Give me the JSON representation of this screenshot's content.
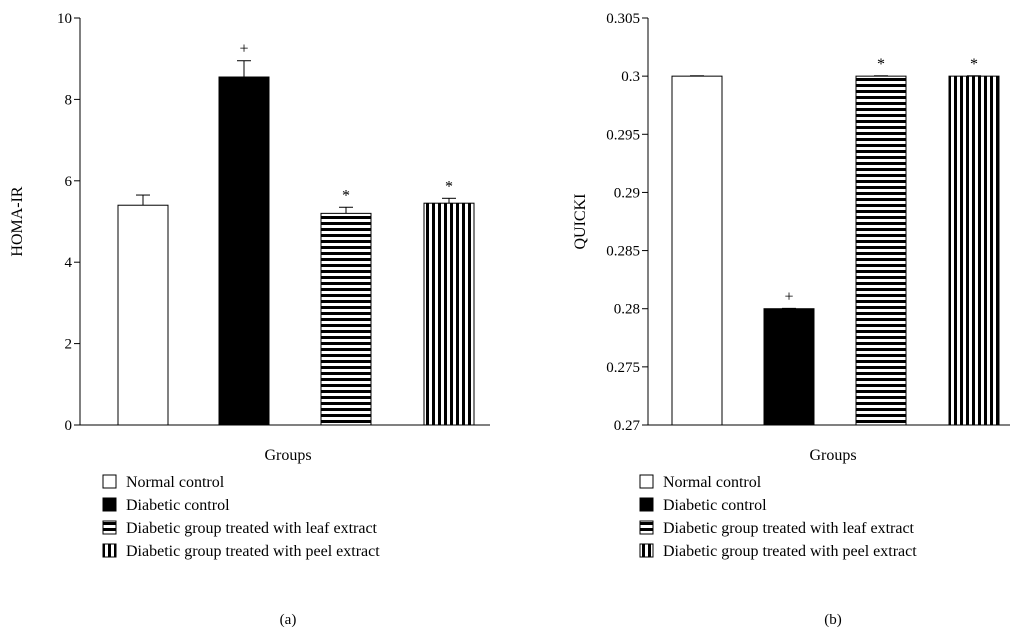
{
  "chart_data": [
    {
      "type": "bar",
      "panel_label": "(a)",
      "ylabel": "HOMA-IR",
      "xlabel": "Groups",
      "ylim": [
        0,
        10
      ],
      "yticks": [
        "0",
        "2",
        "4",
        "6",
        "8",
        "10"
      ],
      "ytick_values": [
        0,
        2,
        4,
        6,
        8,
        10
      ],
      "categories": [
        "Normal control",
        "Diabetic control",
        "Diabetic group treated with leaf extract",
        "Diabetic group treated with peel extract"
      ],
      "values": [
        5.4,
        8.55,
        5.2,
        5.45
      ],
      "errors": [
        0.25,
        0.4,
        0.15,
        0.12
      ],
      "significance": [
        "",
        "+",
        "*",
        "*"
      ],
      "legend": [
        "Normal control",
        "Diabetic control",
        "Diabetic group treated with leaf extract",
        "Diabetic group treated with peel extract"
      ],
      "legend_position": "bottom-left",
      "grid": false
    },
    {
      "type": "bar",
      "panel_label": "(b)",
      "ylabel": "QUICKI",
      "xlabel": "Groups",
      "ylim": [
        0.27,
        0.305
      ],
      "yticks": [
        "0.27",
        "0.275",
        "0.28",
        "0.285",
        "0.29",
        "0.295",
        "0.3",
        "0.305"
      ],
      "ytick_values": [
        0.27,
        0.275,
        0.28,
        0.285,
        0.29,
        0.295,
        0.3,
        0.305
      ],
      "categories": [
        "Normal control",
        "Diabetic control",
        "Diabetic group treated with leaf extract",
        "Diabetic group treated with peel extract"
      ],
      "values": [
        0.3,
        0.28,
        0.3,
        0.3
      ],
      "errors": [
        3e-05,
        3e-05,
        3e-05,
        3e-05
      ],
      "significance": [
        "",
        "+",
        "*",
        "*"
      ],
      "legend": [
        "Normal control",
        "Diabetic control",
        "Diabetic group treated with leaf extract",
        "Diabetic group treated with peel extract"
      ],
      "legend_position": "bottom-left",
      "grid": false
    }
  ],
  "bar_patterns": [
    "white",
    "black",
    "horizontal-stripes",
    "vertical-stripes"
  ],
  "colors": {
    "ink": "#000000",
    "background": "#ffffff"
  }
}
